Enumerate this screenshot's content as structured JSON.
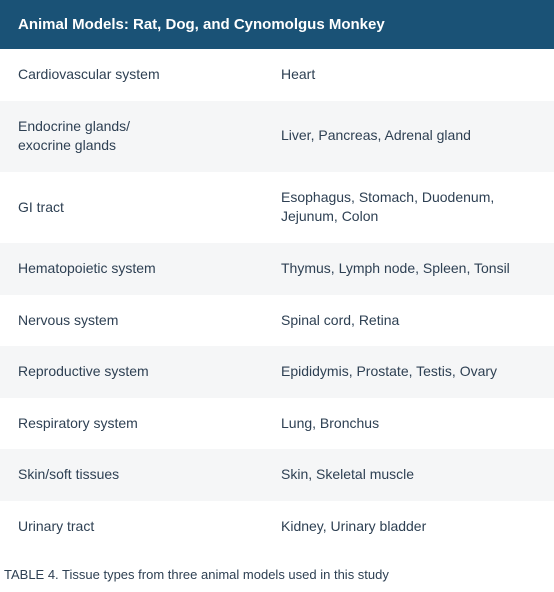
{
  "header": "Animal Models: Rat, Dog, and Cynomolgus Monkey",
  "rows": [
    {
      "system": "Cardiovascular system",
      "tissues": "Heart"
    },
    {
      "system": "Endocrine glands/\nexocrine glands",
      "tissues": "Liver, Pancreas, Adrenal gland"
    },
    {
      "system": "GI tract",
      "tissues": "Esophagus, Stomach, Duodenum, Jejunum, Colon"
    },
    {
      "system": "Hematopoietic system",
      "tissues": "Thymus, Lymph node, Spleen, Tonsil"
    },
    {
      "system": "Nervous system",
      "tissues": "Spinal cord, Retina"
    },
    {
      "system": "Reproductive system",
      "tissues": "Epididymis, Prostate, Testis, Ovary"
    },
    {
      "system": "Respiratory system",
      "tissues": "Lung, Bronchus"
    },
    {
      "system": "Skin/soft tissues",
      "tissues": "Skin, Skeletal muscle"
    },
    {
      "system": "Urinary tract",
      "tissues": "Kidney, Urinary bladder"
    }
  ],
  "caption": "TABLE 4. Tissue types from three animal models used in this study",
  "colors": {
    "header_bg": "#1a5276",
    "header_text": "#ffffff",
    "row_even_bg": "#ffffff",
    "row_odd_bg": "#f5f6f7",
    "text": "#2e4053"
  }
}
